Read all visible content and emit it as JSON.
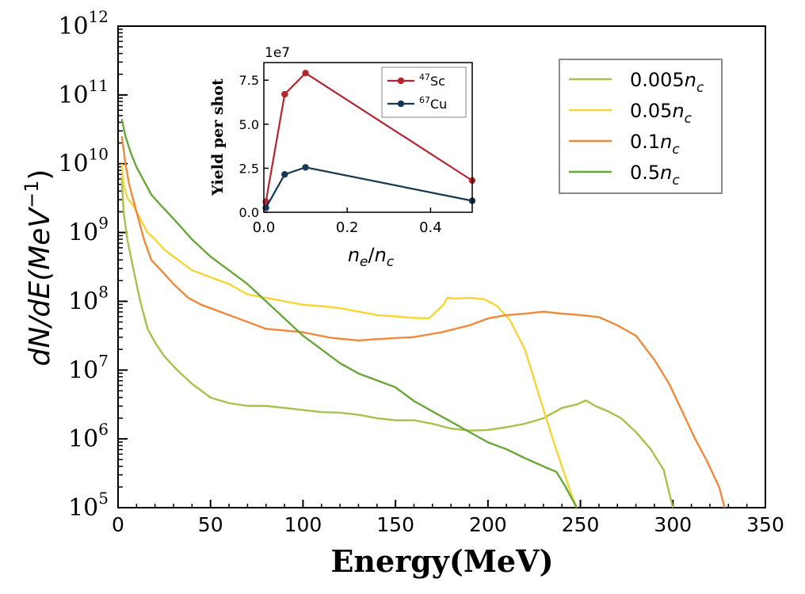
{
  "chart_data": [
    {
      "type": "line",
      "title": "",
      "xlabel": "Energy(MeV)",
      "ylabel_parts": {
        "pre": "dN/dE(MeV",
        "exp": "−1",
        "post": ")"
      },
      "xscale": "linear",
      "yscale": "log",
      "xlim": [
        0,
        350
      ],
      "ylim_exponents": [
        5,
        12
      ],
      "xticks": [
        0,
        50,
        100,
        150,
        200,
        250,
        300,
        350
      ],
      "xtick_labels": [
        "0",
        "50",
        "100",
        "150",
        "200",
        "250",
        "300",
        "350"
      ],
      "ytick_exponents": [
        5,
        6,
        7,
        8,
        9,
        10,
        11,
        12
      ],
      "ytick_base": "10",
      "legend": {
        "position": "top-right",
        "entries": [
          {
            "pre": "0.005",
            "var": "n",
            "sub": "c"
          },
          {
            "pre": "0.05",
            "var": "n",
            "sub": "c"
          },
          {
            "pre": "0.1",
            "var": "n",
            "sub": "c"
          },
          {
            "pre": "0.5",
            "var": "n",
            "sub": "c"
          }
        ]
      },
      "series": [
        {
          "name": "0.005n_c",
          "color": "#a5c24a",
          "points": [
            [
              2,
              9.8
            ],
            [
              3,
              9.3
            ],
            [
              5,
              8.9
            ],
            [
              8,
              8.5
            ],
            [
              12,
              8.0
            ],
            [
              16,
              7.6
            ],
            [
              20,
              7.4
            ],
            [
              25,
              7.2
            ],
            [
              32,
              7.0
            ],
            [
              40,
              6.8
            ],
            [
              50,
              6.6
            ],
            [
              60,
              6.52
            ],
            [
              70,
              6.48
            ],
            [
              80,
              6.48
            ],
            [
              90,
              6.45
            ],
            [
              100,
              6.42
            ],
            [
              110,
              6.39
            ],
            [
              120,
              6.38
            ],
            [
              130,
              6.35
            ],
            [
              140,
              6.3
            ],
            [
              150,
              6.27
            ],
            [
              160,
              6.27
            ],
            [
              170,
              6.22
            ],
            [
              180,
              6.15
            ],
            [
              190,
              6.12
            ],
            [
              200,
              6.13
            ],
            [
              210,
              6.17
            ],
            [
              220,
              6.22
            ],
            [
              230,
              6.3
            ],
            [
              240,
              6.45
            ],
            [
              248,
              6.5
            ],
            [
              253,
              6.56
            ],
            [
              258,
              6.48
            ],
            [
              265,
              6.4
            ],
            [
              272,
              6.3
            ],
            [
              280,
              6.1
            ],
            [
              288,
              5.85
            ],
            [
              295,
              5.55
            ],
            [
              300,
              5.0
            ]
          ]
        },
        {
          "name": "0.05n_c",
          "color": "#f5d636",
          "points": [
            [
              2,
              10.0
            ],
            [
              3,
              9.7
            ],
            [
              5,
              9.5
            ],
            [
              8,
              9.4
            ],
            [
              12,
              9.2
            ],
            [
              16,
              9.0
            ],
            [
              20,
              8.9
            ],
            [
              25,
              8.75
            ],
            [
              30,
              8.65
            ],
            [
              40,
              8.45
            ],
            [
              50,
              8.35
            ],
            [
              60,
              8.25
            ],
            [
              70,
              8.1
            ],
            [
              80,
              8.05
            ],
            [
              90,
              8.0
            ],
            [
              100,
              7.95
            ],
            [
              110,
              7.93
            ],
            [
              120,
              7.9
            ],
            [
              130,
              7.85
            ],
            [
              140,
              7.8
            ],
            [
              150,
              7.78
            ],
            [
              160,
              7.76
            ],
            [
              168,
              7.75
            ],
            [
              172,
              7.85
            ],
            [
              176,
              7.95
            ],
            [
              178,
              8.05
            ],
            [
              182,
              8.04
            ],
            [
              190,
              8.05
            ],
            [
              198,
              8.03
            ],
            [
              205,
              7.93
            ],
            [
              212,
              7.72
            ],
            [
              220,
              7.3
            ],
            [
              228,
              6.6
            ],
            [
              235,
              6.0
            ],
            [
              240,
              5.6
            ],
            [
              245,
              5.2
            ],
            [
              248,
              5.0
            ]
          ]
        },
        {
          "name": "0.1n_c",
          "color": "#ef8a3c",
          "points": [
            [
              2,
              10.4
            ],
            [
              4,
              10.0
            ],
            [
              6,
              9.7
            ],
            [
              10,
              9.3
            ],
            [
              14,
              8.9
            ],
            [
              18,
              8.6
            ],
            [
              25,
              8.4
            ],
            [
              30,
              8.25
            ],
            [
              38,
              8.05
            ],
            [
              45,
              7.95
            ],
            [
              55,
              7.85
            ],
            [
              65,
              7.75
            ],
            [
              80,
              7.6
            ],
            [
              100,
              7.55
            ],
            [
              115,
              7.47
            ],
            [
              130,
              7.43
            ],
            [
              140,
              7.45
            ],
            [
              160,
              7.48
            ],
            [
              175,
              7.55
            ],
            [
              190,
              7.65
            ],
            [
              200,
              7.75
            ],
            [
              210,
              7.8
            ],
            [
              220,
              7.82
            ],
            [
              230,
              7.85
            ],
            [
              240,
              7.82
            ],
            [
              250,
              7.8
            ],
            [
              260,
              7.77
            ],
            [
              270,
              7.65
            ],
            [
              280,
              7.5
            ],
            [
              290,
              7.15
            ],
            [
              298,
              6.8
            ],
            [
              305,
              6.4
            ],
            [
              312,
              6.0
            ],
            [
              318,
              5.7
            ],
            [
              325,
              5.3
            ],
            [
              328,
              5.0
            ]
          ]
        },
        {
          "name": "0.5n_c",
          "color": "#6aa73a",
          "points": [
            [
              2,
              10.65
            ],
            [
              4,
              10.4
            ],
            [
              7,
              10.15
            ],
            [
              10,
              9.95
            ],
            [
              14,
              9.75
            ],
            [
              18,
              9.55
            ],
            [
              23,
              9.4
            ],
            [
              30,
              9.2
            ],
            [
              40,
              8.9
            ],
            [
              50,
              8.65
            ],
            [
              60,
              8.45
            ],
            [
              70,
              8.25
            ],
            [
              80,
              8.0
            ],
            [
              90,
              7.75
            ],
            [
              100,
              7.5
            ],
            [
              110,
              7.3
            ],
            [
              120,
              7.1
            ],
            [
              130,
              6.95
            ],
            [
              140,
              6.85
            ],
            [
              150,
              6.75
            ],
            [
              160,
              6.55
            ],
            [
              170,
              6.4
            ],
            [
              180,
              6.25
            ],
            [
              190,
              6.1
            ],
            [
              200,
              5.95
            ],
            [
              210,
              5.85
            ],
            [
              220,
              5.72
            ],
            [
              230,
              5.6
            ],
            [
              237,
              5.52
            ],
            [
              242,
              5.3
            ],
            [
              248,
              5.0
            ]
          ]
        }
      ]
    },
    {
      "type": "line",
      "title": "",
      "multiplier": "1e7",
      "xlabel_parts": {
        "var1": "n",
        "sub1": "e",
        "sep": "/",
        "var2": "n",
        "sub2": "c"
      },
      "ylabel": "Yield per shot",
      "xlim": [
        0.0,
        0.5
      ],
      "ylim": [
        0.0,
        8.5
      ],
      "xticks": [
        0.0,
        0.2,
        0.4
      ],
      "xtick_labels": [
        "0.0",
        "0.2",
        "0.4"
      ],
      "yticks": [
        0.0,
        2.5,
        5.0,
        7.5
      ],
      "ytick_labels": [
        "0.0",
        "2.5",
        "5.0",
        "7.5"
      ],
      "legend": {
        "position": "top-right",
        "entries": [
          {
            "mass": "47",
            "element": "Sc"
          },
          {
            "mass": "67",
            "element": "Cu"
          }
        ]
      },
      "series": [
        {
          "name": "47Sc",
          "color": "#b22531",
          "x": [
            0.005,
            0.05,
            0.1,
            0.5
          ],
          "y": [
            0.6,
            6.7,
            7.9,
            1.8
          ]
        },
        {
          "name": "67Cu",
          "color": "#163852",
          "x": [
            0.005,
            0.05,
            0.1,
            0.5
          ],
          "y": [
            0.25,
            2.15,
            2.55,
            0.65
          ]
        }
      ]
    }
  ]
}
